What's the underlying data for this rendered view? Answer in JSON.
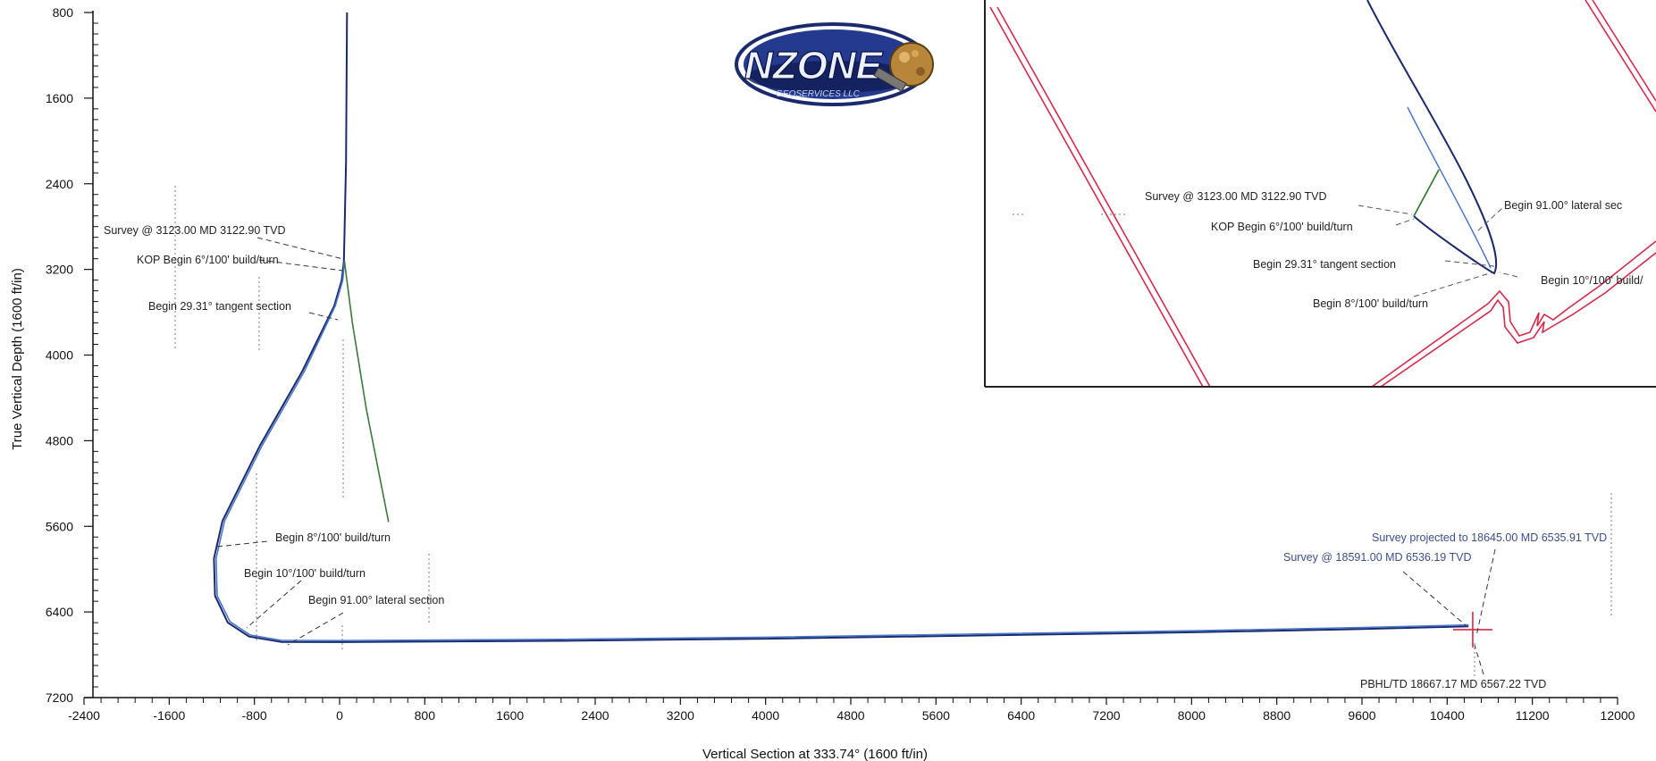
{
  "chart_data": {
    "type": "line",
    "xlabel": "Vertical Section at 333.74° (1600 ft/in)",
    "ylabel": "True Vertical Depth (1600 ft/in)",
    "xlim": [
      -2400,
      12000
    ],
    "ylim": [
      800,
      7200
    ],
    "y_inverted": true,
    "x_ticks": [
      -2400,
      -1600,
      -800,
      0,
      800,
      1600,
      2400,
      3200,
      4000,
      4800,
      5600,
      6400,
      7200,
      8000,
      8800,
      9600,
      10400,
      11200,
      12000
    ],
    "x_tick_labels": [
      "-2400",
      "-1600",
      "-800",
      "0",
      "800",
      "1600",
      "2400",
      "3200",
      "4000",
      "4800",
      "5600",
      "6400",
      "7200",
      "8000",
      "8800",
      "9600",
      "10400",
      "11200",
      "12000"
    ],
    "y_ticks": [
      800,
      1600,
      2400,
      3200,
      4000,
      4800,
      5600,
      6400,
      7200
    ],
    "y_tick_labels": [
      "800",
      "1600",
      "2400",
      "3200",
      "4000",
      "4800",
      "5600",
      "6400",
      "7200"
    ],
    "grid": false,
    "series": [
      {
        "color": "#1a2a6c",
        "points": [
          [
            70,
            800
          ],
          [
            60,
            2200
          ],
          [
            45,
            2900
          ],
          [
            40,
            3123
          ],
          [
            20,
            3300
          ],
          [
            -50,
            3540
          ],
          [
            -350,
            4150
          ],
          [
            -750,
            4850
          ],
          [
            -1100,
            5550
          ],
          [
            -1180,
            5900
          ],
          [
            -1170,
            6250
          ],
          [
            -1050,
            6500
          ],
          [
            -850,
            6630
          ],
          [
            -550,
            6680
          ],
          [
            0,
            6682
          ],
          [
            2000,
            6670
          ],
          [
            4000,
            6650
          ],
          [
            6000,
            6620
          ],
          [
            8000,
            6590
          ],
          [
            9600,
            6560
          ],
          [
            10600,
            6535
          ]
        ]
      },
      {
        "color": "#4a78c8",
        "points": [
          [
            45,
            3123
          ],
          [
            30,
            3300
          ],
          [
            -40,
            3540
          ],
          [
            -330,
            4150
          ],
          [
            -730,
            4850
          ],
          [
            -1080,
            5550
          ],
          [
            -1160,
            5900
          ],
          [
            -1150,
            6250
          ],
          [
            -1030,
            6490
          ],
          [
            -840,
            6615
          ],
          [
            -550,
            6665
          ],
          [
            0,
            6668
          ],
          [
            2000,
            6656
          ],
          [
            4000,
            6636
          ],
          [
            6000,
            6606
          ],
          [
            8000,
            6576
          ],
          [
            9600,
            6546
          ],
          [
            10600,
            6522
          ]
        ]
      },
      {
        "color": "#3a7a3a",
        "points": [
          [
            45,
            3123
          ],
          [
            120,
            3700
          ],
          [
            250,
            4500
          ],
          [
            460,
            5560
          ]
        ]
      }
    ],
    "target": {
      "color": "#d62a4a",
      "x": 10640,
      "y": 6565
    },
    "annotations": [
      {
        "text": "Survey @ 3123.00 MD 3122.90 TVD",
        "x": 40,
        "y": 3123
      },
      {
        "text": "KOP Begin 6°/100' build/turn",
        "x": 40,
        "y": 3240
      },
      {
        "text": "Begin 29.31° tangent section",
        "x": -40,
        "y": 3540
      },
      {
        "text": "Begin 8°/100' build/turn",
        "x": -1160,
        "y": 5980
      },
      {
        "text": "Begin 10°/100' build/turn",
        "x": -1180,
        "y": 6330
      },
      {
        "text": "Begin 91.00° lateral section",
        "x": -550,
        "y": 6675
      },
      {
        "text": "Survey projected to 18645.00 MD 6535.91 TVD",
        "x": 10600,
        "y": 6535
      },
      {
        "text": "Survey @ 18591.00 MD 6536.19 TVD",
        "x": 10560,
        "y": 6536
      },
      {
        "text": "PBHL/TD 18667.17 MD 6567.22 TVD",
        "x": 10640,
        "y": 6567
      }
    ]
  },
  "logo": {
    "text": "NZONE",
    "subtext": "GEOSERVICES LLC"
  },
  "inset": {
    "annotations": [
      "Survey @ 3123.00 MD 3122.90 TVD",
      "KOP Begin 6°/100' build/turn",
      "Begin 29.31° tangent section",
      "Begin 8°/100' build/turn",
      "Begin 91.00° lateral sec",
      "Begin 10°/100' build/"
    ]
  },
  "colors": {
    "well_dark": "#1a2a6c",
    "well_light": "#4a78c8",
    "plan_green": "#3a7a3a",
    "lease_red": "#d62a4a",
    "blue_label": "#3a4f8c"
  }
}
